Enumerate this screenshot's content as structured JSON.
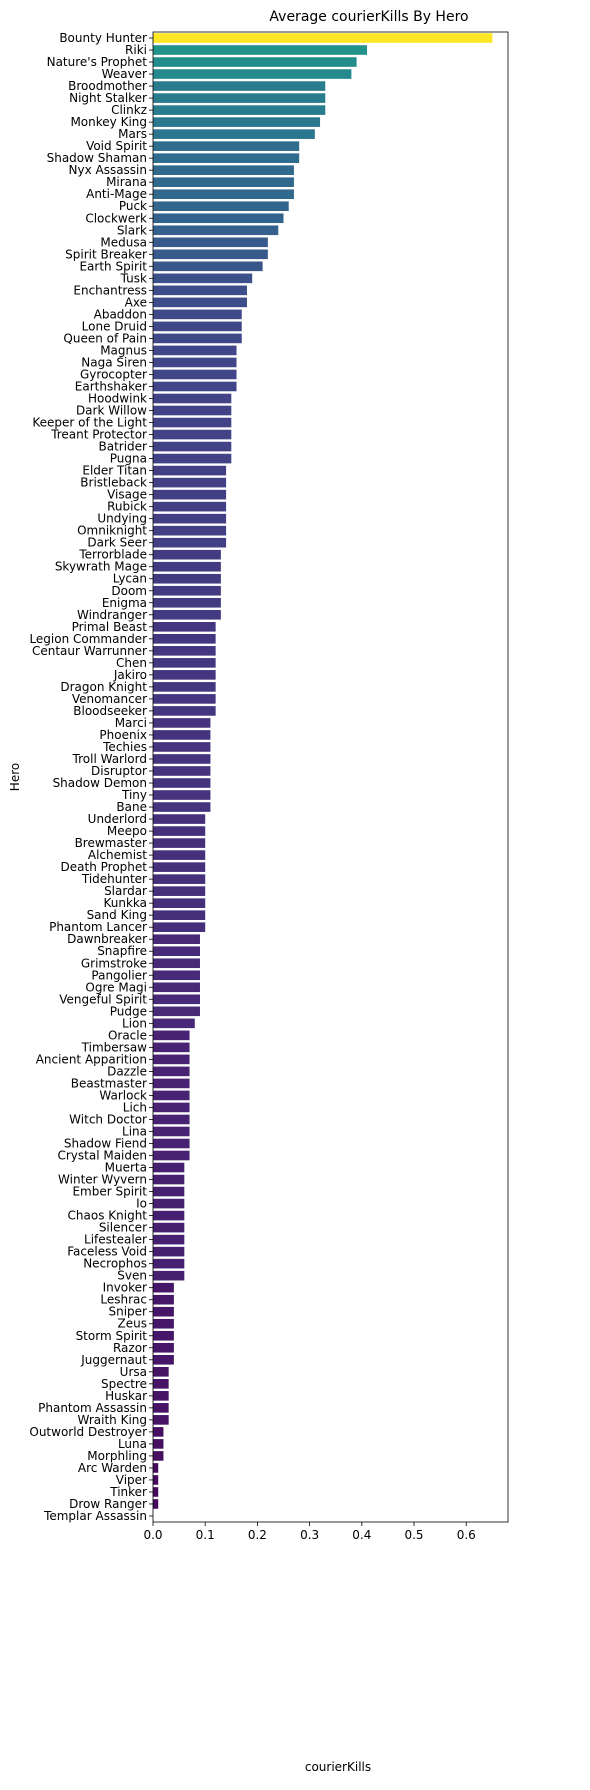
{
  "chart_data": {
    "type": "bar",
    "orientation": "horizontal",
    "title": "Average courierKills By Hero",
    "xlabel": "courierKills",
    "ylabel": "Hero",
    "xlim": [
      0,
      0.68
    ],
    "xticks": [
      0.0,
      0.1,
      0.2,
      0.3,
      0.4,
      0.5,
      0.6
    ],
    "grid": false,
    "legend": "none",
    "colormap": "viridis",
    "categories": [
      "Bounty Hunter",
      "Riki",
      "Nature's Prophet",
      "Weaver",
      "Broodmother",
      "Night Stalker",
      "Clinkz",
      "Monkey King",
      "Mars",
      "Void Spirit",
      "Shadow Shaman",
      "Nyx Assassin",
      "Mirana",
      "Anti-Mage",
      "Puck",
      "Clockwerk",
      "Slark",
      "Medusa",
      "Spirit Breaker",
      "Earth Spirit",
      "Tusk",
      "Enchantress",
      "Axe",
      "Abaddon",
      "Lone Druid",
      "Queen of Pain",
      "Magnus",
      "Naga Siren",
      "Gyrocopter",
      "Earthshaker",
      "Hoodwink",
      "Dark Willow",
      "Keeper of the Light",
      "Treant Protector",
      "Batrider",
      "Pugna",
      "Elder Titan",
      "Bristleback",
      "Visage",
      "Rubick",
      "Undying",
      "Omniknight",
      "Dark Seer",
      "Terrorblade",
      "Skywrath Mage",
      "Lycan",
      "Doom",
      "Enigma",
      "Windranger",
      "Primal Beast",
      "Legion Commander",
      "Centaur Warrunner",
      "Chen",
      "Jakiro",
      "Dragon Knight",
      "Venomancer",
      "Bloodseeker",
      "Marci",
      "Phoenix",
      "Techies",
      "Troll Warlord",
      "Disruptor",
      "Shadow Demon",
      "Tiny",
      "Bane",
      "Underlord",
      "Meepo",
      "Brewmaster",
      "Alchemist",
      "Death Prophet",
      "Tidehunter",
      "Slardar",
      "Kunkka",
      "Sand King",
      "Phantom Lancer",
      "Dawnbreaker",
      "Snapfire",
      "Grimstroke",
      "Pangolier",
      "Ogre Magi",
      "Vengeful Spirit",
      "Pudge",
      "Lion",
      "Oracle",
      "Timbersaw",
      "Ancient Apparition",
      "Dazzle",
      "Beastmaster",
      "Warlock",
      "Lich",
      "Witch Doctor",
      "Lina",
      "Shadow Fiend",
      "Crystal Maiden",
      "Muerta",
      "Winter Wyvern",
      "Ember Spirit",
      "Io",
      "Chaos Knight",
      "Silencer",
      "Lifestealer",
      "Faceless Void",
      "Necrophos",
      "Sven",
      "Invoker",
      "Leshrac",
      "Sniper",
      "Zeus",
      "Storm Spirit",
      "Razor",
      "Juggernaut",
      "Ursa",
      "Spectre",
      "Huskar",
      "Phantom Assassin",
      "Wraith King",
      "Outworld Destroyer",
      "Luna",
      "Morphling",
      "Arc Warden",
      "Viper",
      "Tinker",
      "Drow Ranger",
      "Templar Assassin"
    ],
    "values": [
      0.65,
      0.41,
      0.39,
      0.38,
      0.33,
      0.33,
      0.33,
      0.32,
      0.31,
      0.28,
      0.28,
      0.27,
      0.27,
      0.27,
      0.26,
      0.25,
      0.24,
      0.22,
      0.22,
      0.21,
      0.19,
      0.18,
      0.18,
      0.17,
      0.17,
      0.17,
      0.16,
      0.16,
      0.16,
      0.16,
      0.15,
      0.15,
      0.15,
      0.15,
      0.15,
      0.15,
      0.14,
      0.14,
      0.14,
      0.14,
      0.14,
      0.14,
      0.14,
      0.13,
      0.13,
      0.13,
      0.13,
      0.13,
      0.13,
      0.12,
      0.12,
      0.12,
      0.12,
      0.12,
      0.12,
      0.12,
      0.12,
      0.11,
      0.11,
      0.11,
      0.11,
      0.11,
      0.11,
      0.11,
      0.11,
      0.1,
      0.1,
      0.1,
      0.1,
      0.1,
      0.1,
      0.1,
      0.1,
      0.1,
      0.1,
      0.09,
      0.09,
      0.09,
      0.09,
      0.09,
      0.09,
      0.09,
      0.08,
      0.07,
      0.07,
      0.07,
      0.07,
      0.07,
      0.07,
      0.07,
      0.07,
      0.07,
      0.07,
      0.07,
      0.06,
      0.06,
      0.06,
      0.06,
      0.06,
      0.06,
      0.06,
      0.06,
      0.06,
      0.06,
      0.04,
      0.04,
      0.04,
      0.04,
      0.04,
      0.04,
      0.04,
      0.03,
      0.03,
      0.03,
      0.03,
      0.03,
      0.02,
      0.02,
      0.02,
      0.01,
      0.01,
      0.01,
      0.01,
      0.0
    ]
  }
}
